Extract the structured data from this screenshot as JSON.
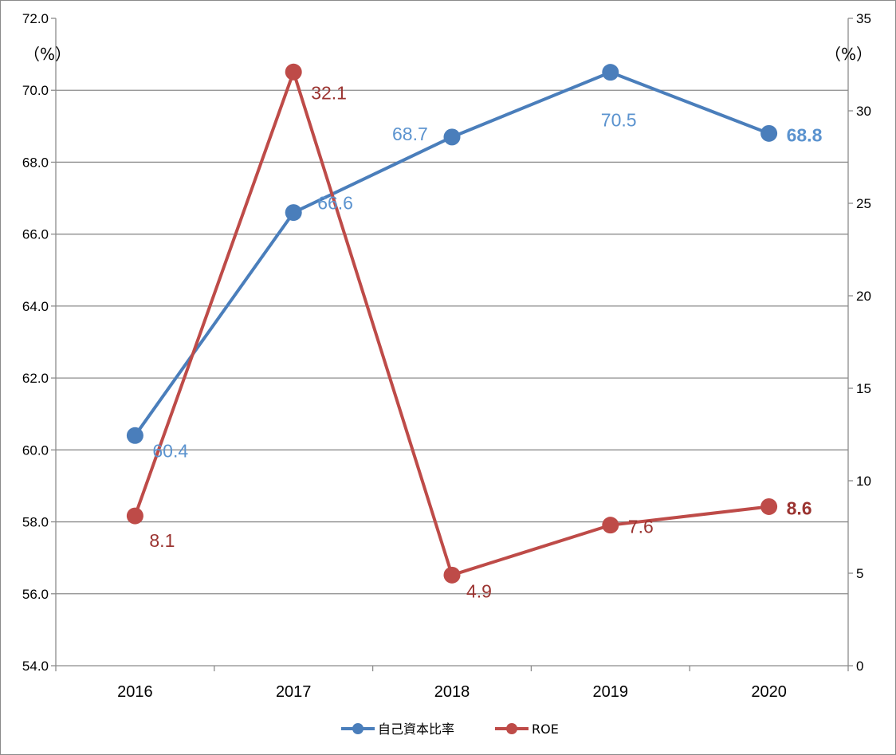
{
  "chart_data": {
    "type": "line",
    "categories": [
      "2016",
      "2017",
      "2018",
      "2019",
      "2020"
    ],
    "series": [
      {
        "name": "自己資本比率",
        "axis": "left",
        "color": "#4a7ebb",
        "label_color": "#5b93cf",
        "values": [
          60.4,
          66.6,
          68.7,
          70.5,
          68.8
        ],
        "labels": [
          "60.4",
          "66.6",
          "68.7",
          "70.5",
          "68.8"
        ]
      },
      {
        "name": "ROE",
        "axis": "right",
        "color": "#be4b48",
        "label_color": "#9b3431",
        "values": [
          8.1,
          32.1,
          4.9,
          7.6,
          8.6
        ],
        "labels": [
          "8.1",
          "32.1",
          "4.9",
          "7.6",
          "8.6"
        ]
      }
    ],
    "y_left": {
      "unit": "（%）",
      "ylim": [
        54.0,
        72.0
      ],
      "ticks": [
        "54.0",
        "56.0",
        "58.0",
        "60.0",
        "62.0",
        "64.0",
        "66.0",
        "68.0",
        "70.0",
        "72.0"
      ]
    },
    "y_right": {
      "unit": "（%）",
      "ylim": [
        0,
        35
      ],
      "ticks": [
        "0",
        "5",
        "10",
        "15",
        "20",
        "25",
        "30",
        "35"
      ]
    },
    "grid": true,
    "legend_position": "bottom"
  }
}
